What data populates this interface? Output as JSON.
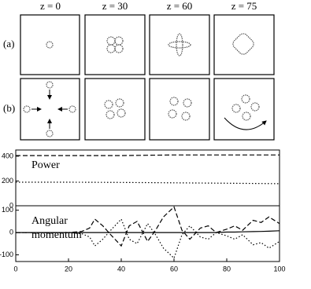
{
  "figure": {
    "columns": [
      "z = 0",
      "z = 30",
      "z = 60",
      "z = 75"
    ],
    "rows": [
      "(a)",
      "(b)"
    ]
  },
  "chart_data": [
    {
      "type": "line",
      "label_lines": [
        "Power"
      ],
      "x": [
        0,
        20,
        40,
        60,
        80,
        100
      ],
      "series": [
        {
          "color": "#000000",
          "dash": "dashed",
          "values": [
            405,
            405,
            405,
            410,
            410,
            410
          ]
        },
        {
          "color": "#000000",
          "dash": "dotted",
          "values": [
            190,
            190,
            188,
            185,
            182,
            178
          ]
        }
      ],
      "xlim": [
        0,
        100
      ],
      "ylim": [
        0,
        450
      ],
      "yticks": [
        0,
        200,
        400
      ]
    },
    {
      "type": "line",
      "label_lines": [
        "Angular",
        "momentum"
      ],
      "x": [
        0,
        10,
        20,
        25,
        28,
        30,
        33,
        36,
        40,
        43,
        46,
        50,
        53,
        56,
        60,
        63,
        66,
        70,
        73,
        76,
        80,
        83,
        86,
        90,
        93,
        96,
        100
      ],
      "series": [
        {
          "color": "#000000",
          "dash": "dashed",
          "values": [
            0,
            0,
            0,
            5,
            20,
            60,
            30,
            -10,
            -60,
            30,
            50,
            -40,
            10,
            70,
            115,
            10,
            -30,
            20,
            30,
            0,
            15,
            30,
            10,
            55,
            45,
            70,
            40
          ]
        },
        {
          "color": "#000000",
          "dash": "dotted",
          "values": [
            0,
            0,
            0,
            -5,
            -20,
            -60,
            -30,
            10,
            60,
            -30,
            -50,
            40,
            -10,
            -70,
            -115,
            -10,
            30,
            -20,
            -30,
            0,
            -15,
            -30,
            -10,
            -55,
            -45,
            -70,
            -40
          ]
        },
        {
          "color": "#000000",
          "dash": "solid",
          "values": [
            0,
            0,
            0,
            0,
            0,
            0,
            0,
            0,
            0,
            0,
            0,
            0,
            0,
            0,
            0,
            0,
            0,
            0,
            0,
            0,
            2,
            2,
            3,
            4,
            5,
            6,
            8
          ]
        }
      ],
      "xlim": [
        0,
        100
      ],
      "ylim": [
        -130,
        120
      ],
      "yticks": [
        -100,
        0,
        100
      ],
      "xticks": [
        0,
        20,
        40,
        60,
        80,
        100
      ]
    }
  ]
}
